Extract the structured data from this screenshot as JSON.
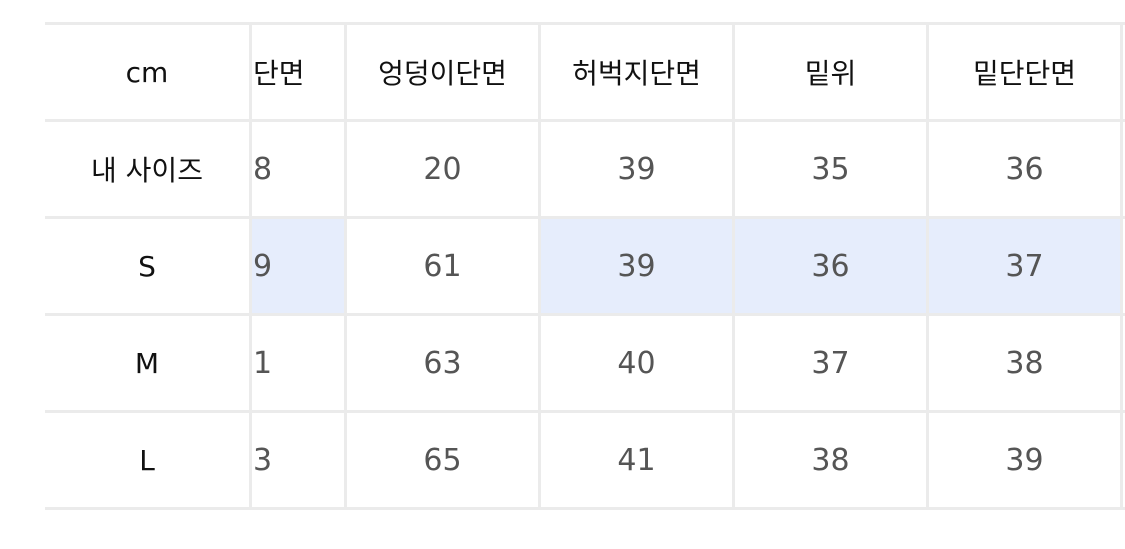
{
  "header": {
    "unit": "cm",
    "columns": [
      "단면",
      "엉덩이단면",
      "허벅지단면",
      "밑위",
      "밑단단면"
    ]
  },
  "rows": [
    {
      "label": "내 사이즈",
      "values": [
        "8",
        "20",
        "39",
        "35",
        "36"
      ],
      "highlighted": [
        false,
        false,
        false,
        false,
        false
      ]
    },
    {
      "label": "S",
      "values": [
        "9",
        "61",
        "39",
        "36",
        "37"
      ],
      "highlighted": [
        true,
        false,
        true,
        true,
        true
      ]
    },
    {
      "label": "M",
      "values": [
        "1",
        "63",
        "40",
        "37",
        "38"
      ],
      "highlighted": [
        false,
        false,
        false,
        false,
        false
      ]
    },
    {
      "label": "L",
      "values": [
        "3",
        "65",
        "41",
        "38",
        "39"
      ],
      "highlighted": [
        false,
        false,
        false,
        false,
        false
      ]
    }
  ],
  "colors": {
    "highlight": "#e6edfc",
    "grid": "#ebebeb"
  }
}
